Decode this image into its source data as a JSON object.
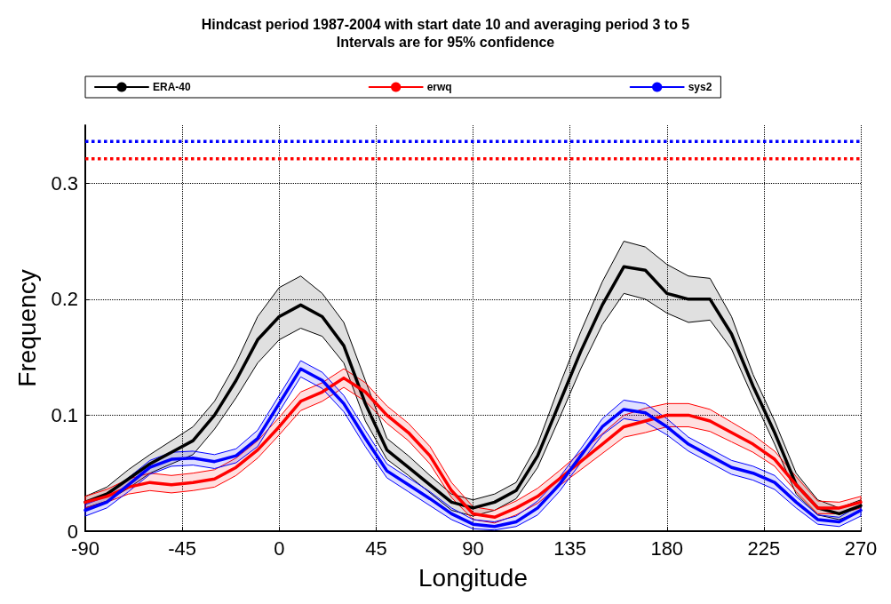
{
  "chart_data": {
    "type": "line",
    "title": "Hindcast period 1987-2004 with start date 10 and averaging period 3 to 5",
    "subtitle": "Intervals are for 95% confidence",
    "xlabel": "Longitude",
    "ylabel": "Frequency",
    "x": [
      -90,
      -80,
      -70,
      -60,
      -50,
      -40,
      -30,
      -20,
      -10,
      0,
      10,
      20,
      30,
      40,
      50,
      60,
      70,
      80,
      90,
      100,
      110,
      120,
      130,
      140,
      150,
      160,
      170,
      180,
      190,
      200,
      210,
      220,
      230,
      240,
      250,
      260,
      270
    ],
    "series": [
      {
        "name": "ERA-40",
        "color": "#000000",
        "values": [
          0.025,
          0.032,
          0.045,
          0.058,
          0.068,
          0.078,
          0.1,
          0.13,
          0.165,
          0.185,
          0.195,
          0.185,
          0.16,
          0.11,
          0.07,
          0.055,
          0.04,
          0.025,
          0.02,
          0.025,
          0.035,
          0.065,
          0.11,
          0.155,
          0.195,
          0.228,
          0.225,
          0.205,
          0.2,
          0.2,
          0.17,
          0.125,
          0.085,
          0.04,
          0.02,
          0.015,
          0.022
        ],
        "upper": [
          0.03,
          0.038,
          0.053,
          0.066,
          0.078,
          0.09,
          0.112,
          0.145,
          0.185,
          0.21,
          0.22,
          0.205,
          0.18,
          0.13,
          0.08,
          0.065,
          0.048,
          0.032,
          0.027,
          0.032,
          0.042,
          0.075,
          0.125,
          0.172,
          0.215,
          0.25,
          0.245,
          0.23,
          0.22,
          0.218,
          0.185,
          0.135,
          0.095,
          0.05,
          0.027,
          0.02,
          0.027
        ],
        "lower": [
          0.02,
          0.026,
          0.037,
          0.05,
          0.058,
          0.066,
          0.088,
          0.115,
          0.145,
          0.165,
          0.175,
          0.168,
          0.145,
          0.095,
          0.062,
          0.048,
          0.033,
          0.018,
          0.013,
          0.018,
          0.028,
          0.055,
          0.097,
          0.14,
          0.178,
          0.205,
          0.2,
          0.188,
          0.18,
          0.182,
          0.157,
          0.115,
          0.075,
          0.032,
          0.014,
          0.01,
          0.017
        ]
      },
      {
        "name": "erwq",
        "color": "#ff0000",
        "values": [
          0.025,
          0.03,
          0.038,
          0.042,
          0.04,
          0.042,
          0.045,
          0.055,
          0.07,
          0.09,
          0.112,
          0.12,
          0.132,
          0.12,
          0.1,
          0.085,
          0.065,
          0.035,
          0.015,
          0.012,
          0.02,
          0.03,
          0.045,
          0.06,
          0.075,
          0.09,
          0.095,
          0.1,
          0.1,
          0.095,
          0.085,
          0.075,
          0.062,
          0.04,
          0.02,
          0.02,
          0.025
        ],
        "upper": [
          0.03,
          0.036,
          0.045,
          0.05,
          0.048,
          0.05,
          0.053,
          0.063,
          0.078,
          0.098,
          0.12,
          0.128,
          0.14,
          0.128,
          0.108,
          0.093,
          0.073,
          0.042,
          0.021,
          0.018,
          0.026,
          0.037,
          0.052,
          0.068,
          0.084,
          0.1,
          0.106,
          0.11,
          0.11,
          0.105,
          0.094,
          0.083,
          0.069,
          0.047,
          0.026,
          0.025,
          0.03
        ],
        "lower": [
          0.02,
          0.025,
          0.032,
          0.035,
          0.033,
          0.035,
          0.038,
          0.048,
          0.063,
          0.083,
          0.104,
          0.112,
          0.124,
          0.112,
          0.093,
          0.078,
          0.058,
          0.029,
          0.01,
          0.007,
          0.014,
          0.024,
          0.039,
          0.053,
          0.067,
          0.081,
          0.085,
          0.09,
          0.09,
          0.086,
          0.077,
          0.068,
          0.056,
          0.034,
          0.015,
          0.015,
          0.02
        ]
      },
      {
        "name": "sys2",
        "color": "#0000ff",
        "values": [
          0.018,
          0.025,
          0.04,
          0.055,
          0.062,
          0.063,
          0.06,
          0.065,
          0.08,
          0.11,
          0.14,
          0.13,
          0.11,
          0.08,
          0.052,
          0.04,
          0.028,
          0.015,
          0.006,
          0.004,
          0.008,
          0.02,
          0.04,
          0.065,
          0.09,
          0.105,
          0.102,
          0.09,
          0.075,
          0.065,
          0.055,
          0.05,
          0.042,
          0.025,
          0.01,
          0.008,
          0.018
        ],
        "upper": [
          0.023,
          0.03,
          0.046,
          0.061,
          0.068,
          0.069,
          0.066,
          0.071,
          0.087,
          0.117,
          0.147,
          0.137,
          0.117,
          0.087,
          0.058,
          0.046,
          0.034,
          0.02,
          0.01,
          0.008,
          0.013,
          0.026,
          0.046,
          0.071,
          0.097,
          0.113,
          0.11,
          0.097,
          0.081,
          0.071,
          0.061,
          0.056,
          0.048,
          0.03,
          0.014,
          0.012,
          0.023
        ],
        "lower": [
          0.013,
          0.02,
          0.034,
          0.049,
          0.056,
          0.057,
          0.054,
          0.059,
          0.073,
          0.103,
          0.133,
          0.123,
          0.103,
          0.073,
          0.046,
          0.034,
          0.022,
          0.01,
          0.002,
          0.001,
          0.004,
          0.014,
          0.034,
          0.059,
          0.083,
          0.097,
          0.094,
          0.083,
          0.069,
          0.059,
          0.049,
          0.044,
          0.036,
          0.02,
          0.006,
          0.004,
          0.013
        ]
      }
    ],
    "ref_lines": [
      {
        "axis": "y",
        "value": 0.336,
        "color": "#0000ff",
        "line_style": "dotted"
      },
      {
        "axis": "y",
        "value": 0.321,
        "color": "#ff0000",
        "line_style": "dotted"
      }
    ],
    "xlim": [
      -90,
      270
    ],
    "xticks": [
      -90,
      -45,
      0,
      45,
      90,
      135,
      180,
      225,
      270
    ],
    "ylim": [
      0,
      0.35
    ],
    "yticks": [
      0,
      0.1,
      0.2,
      0.3
    ],
    "grid": true,
    "legend": "top",
    "line_style": "solid",
    "marker": "none"
  }
}
